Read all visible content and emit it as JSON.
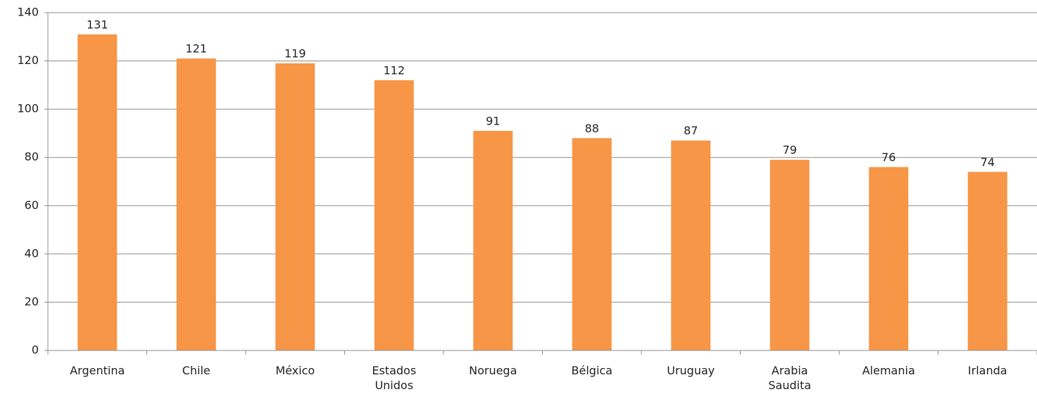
{
  "chart_data": {
    "type": "bar",
    "categories": [
      "Argentina",
      "Chile",
      "México",
      "Estados Unidos",
      "Noruega",
      "Bélgica",
      "Uruguay",
      "Arabia Saudita",
      "Alemania",
      "Irlanda"
    ],
    "values": [
      131,
      121,
      119,
      112,
      91,
      88,
      87,
      79,
      76,
      74
    ],
    "color": "#f79646",
    "ylim": [
      0,
      140
    ],
    "yticks": [
      0,
      20,
      40,
      60,
      80,
      100,
      120,
      140
    ],
    "grid": true
  }
}
